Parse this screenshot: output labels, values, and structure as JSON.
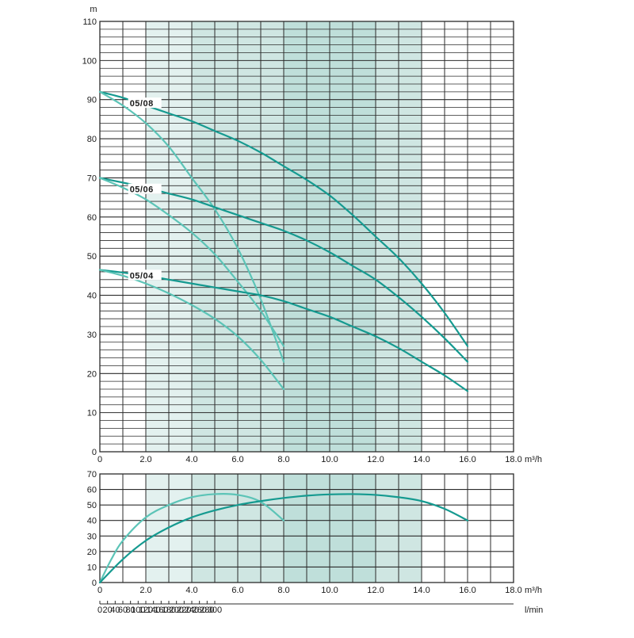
{
  "chart_data": [
    {
      "type": "line",
      "panel": "head",
      "ylabel": "m",
      "xunit": "m³/h",
      "xlim": [
        0,
        18
      ],
      "ylim": [
        0,
        110
      ],
      "x_tick_labels": [
        "0",
        "2.0",
        "4.0",
        "6.0",
        "8.0",
        "10.0",
        "12.0",
        "14.0",
        "16.0",
        "18.0"
      ],
      "y_tick_labels": [
        "0",
        "10",
        "20",
        "30",
        "40",
        "50",
        "60",
        "70",
        "80",
        "90",
        "100",
        "110"
      ],
      "shaded_bands_x": [
        [
          2,
          4
        ],
        [
          4,
          8
        ],
        [
          8,
          12
        ],
        [
          12,
          14
        ]
      ],
      "shade_colors": [
        "#e3f1ef",
        "#cfe6e2",
        "#bfdfda",
        "#cfe6e2"
      ],
      "series": [
        {
          "name": "05/08",
          "style": "dark",
          "x": [
            0,
            1,
            2,
            3,
            4,
            5,
            6,
            7,
            8,
            9,
            10,
            11,
            12,
            13,
            14,
            15,
            16
          ],
          "y": [
            92,
            90.5,
            88.5,
            86.5,
            84.5,
            82,
            79.5,
            76.5,
            73,
            69.5,
            65.5,
            60.5,
            55,
            49.5,
            43,
            35.5,
            27
          ]
        },
        {
          "name": "",
          "style": "light",
          "x": [
            0,
            1,
            2,
            3,
            4,
            5,
            6,
            7,
            8
          ],
          "y": [
            92,
            88.5,
            84,
            78,
            70,
            62,
            52,
            39,
            23
          ]
        },
        {
          "name": "05/06",
          "style": "dark",
          "x": [
            0,
            1,
            2,
            3,
            4,
            5,
            6,
            7,
            8,
            9,
            10,
            11,
            12,
            13,
            14,
            15,
            16
          ],
          "y": [
            70,
            68.8,
            67.5,
            66,
            64.5,
            62.5,
            60.5,
            58.5,
            56.5,
            54,
            51,
            47.5,
            44,
            39.5,
            34.5,
            29,
            23
          ]
        },
        {
          "name": "",
          "style": "light",
          "x": [
            0,
            1,
            2,
            3,
            4,
            5,
            6,
            7,
            8
          ],
          "y": [
            70,
            67.5,
            64.5,
            60.5,
            56,
            50.5,
            43.5,
            36,
            27
          ]
        },
        {
          "name": "05/04",
          "style": "dark",
          "x": [
            0,
            1,
            2,
            3,
            4,
            5,
            6,
            7,
            8,
            9,
            10,
            11,
            12,
            13,
            14,
            15,
            16
          ],
          "y": [
            46.5,
            45.8,
            45,
            44,
            43,
            42,
            41,
            40,
            38.5,
            36.5,
            34.5,
            32,
            29.5,
            26.5,
            23,
            19.5,
            15.5
          ]
        },
        {
          "name": "",
          "style": "light",
          "x": [
            0,
            1,
            2,
            3,
            4,
            5,
            6,
            7,
            8
          ],
          "y": [
            46.5,
            45,
            43,
            40.5,
            37.5,
            34,
            29.5,
            23.5,
            16
          ]
        }
      ],
      "curve_labels": [
        {
          "text": "05/08",
          "x": 1.3,
          "y": 88.5
        },
        {
          "text": "05/06",
          "x": 1.3,
          "y": 66.5
        },
        {
          "text": "05/04",
          "x": 1.3,
          "y": 44.5
        }
      ]
    },
    {
      "type": "line",
      "panel": "efficiency",
      "ylabel": "",
      "xunit": "m³/h",
      "x2unit": "l/min",
      "xlim": [
        0,
        18
      ],
      "ylim": [
        0,
        70
      ],
      "x_tick_labels": [
        "0",
        "2.0",
        "4.0",
        "6.0",
        "8.0",
        "10.0",
        "12.0",
        "14.0",
        "16.0",
        "18.0"
      ],
      "x2_tick_labels": [
        "0",
        "20",
        "40",
        "60",
        "80",
        "100",
        "120",
        "140",
        "160",
        "180",
        "200",
        "220",
        "240",
        "260",
        "280",
        "300"
      ],
      "y_tick_labels": [
        "0",
        "10",
        "20",
        "30",
        "40",
        "50",
        "60",
        "70"
      ],
      "shaded_bands_x": [
        [
          2,
          4
        ],
        [
          4,
          8
        ],
        [
          8,
          12
        ],
        [
          12,
          14
        ]
      ],
      "series": [
        {
          "name": "",
          "style": "light",
          "x": [
            0,
            0.5,
            1,
            2,
            3,
            4,
            5,
            6,
            7,
            8
          ],
          "y": [
            0,
            15,
            27,
            42,
            50,
            55,
            57,
            56.5,
            52,
            40
          ]
        },
        {
          "name": "",
          "style": "dark",
          "x": [
            0,
            1,
            2,
            3,
            4,
            5,
            6,
            7,
            8,
            9,
            10,
            11,
            12,
            13,
            14,
            15,
            16
          ],
          "y": [
            0,
            15,
            27,
            35.5,
            42,
            46.5,
            50,
            52.5,
            54.5,
            56,
            56.8,
            57,
            56.5,
            55,
            52.5,
            47.5,
            40
          ]
        }
      ]
    }
  ],
  "colors": {
    "curve_dark": "#159a90",
    "curve_light": "#5cc4b7",
    "grid": "#2b2b2b",
    "text": "#1a1a1a"
  }
}
